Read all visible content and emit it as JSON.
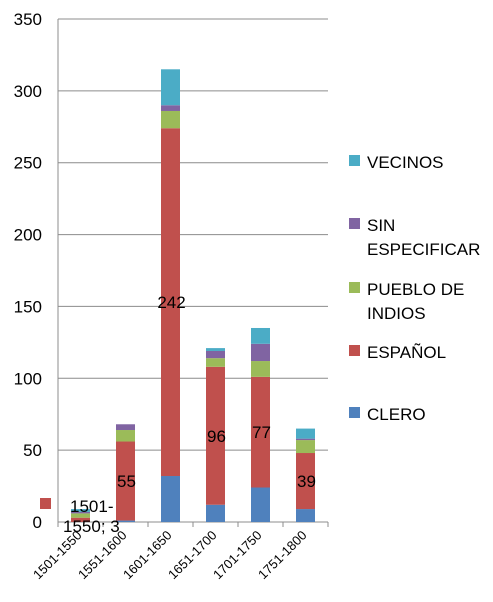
{
  "chart_data": {
    "type": "bar",
    "stacked": true,
    "title": "",
    "xlabel": "",
    "ylabel": "",
    "ylim": [
      0,
      350
    ],
    "yticks": [
      0,
      50,
      100,
      150,
      200,
      250,
      300,
      350
    ],
    "grid": true,
    "legend_position": "right",
    "categories": [
      "1501-1550",
      "1551-1600",
      "1601-1650",
      "1651-1700",
      "1701-1750",
      "1751-1800"
    ],
    "series": [
      {
        "name": "CLERO",
        "color": "#4F81BD",
        "values": [
          0,
          1,
          32,
          12,
          24,
          9
        ]
      },
      {
        "name": "ESPAÑOL",
        "color": "#C0504D",
        "values": [
          3,
          55,
          242,
          96,
          77,
          39
        ]
      },
      {
        "name": "PUEBLO DE INDIOS",
        "color": "#9BBB59",
        "values": [
          3,
          8,
          12,
          6,
          11,
          9
        ]
      },
      {
        "name": "SIN ESPECIFICAR",
        "color": "#8064A2",
        "values": [
          1,
          4,
          4,
          5,
          12,
          1
        ]
      },
      {
        "name": "VECINOS",
        "color": "#4BACC6",
        "values": [
          2,
          0,
          25,
          2,
          11,
          7
        ]
      }
    ],
    "data_labels": [
      {
        "category": "1501-1550",
        "series": "ESPAÑOL",
        "lines": [
          "1501-",
          "1550; 3"
        ],
        "with_key": true
      },
      {
        "category": "1551-1600",
        "series": "ESPAÑOL",
        "lines": [
          "55"
        ]
      },
      {
        "category": "1601-1650",
        "series": "ESPAÑOL",
        "lines": [
          "242"
        ]
      },
      {
        "category": "1651-1700",
        "series": "ESPAÑOL",
        "lines": [
          "96"
        ]
      },
      {
        "category": "1701-1750",
        "series": "ESPAÑOL",
        "lines": [
          "77"
        ]
      },
      {
        "category": "1751-1800",
        "series": "ESPAÑOL",
        "lines": [
          "39"
        ]
      }
    ],
    "legend": [
      {
        "series": "VECINOS",
        "lines": [
          "VECINOS"
        ]
      },
      {
        "series": "SIN ESPECIFICAR",
        "lines": [
          "SIN",
          "ESPECIFICAR"
        ]
      },
      {
        "series": "PUEBLO DE INDIOS",
        "lines": [
          "PUEBLO DE",
          "INDIOS"
        ]
      },
      {
        "series": "ESPAÑOL",
        "lines": [
          "ESPAÑOL"
        ]
      },
      {
        "series": "CLERO",
        "lines": [
          "CLERO"
        ]
      }
    ]
  }
}
